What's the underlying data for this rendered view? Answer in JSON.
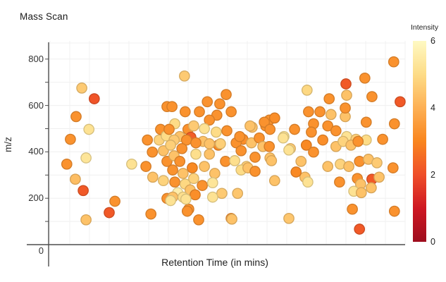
{
  "plot": {
    "title": "Mass Scan",
    "x_axis": {
      "label": "Retention Time (in mins)",
      "tick_labels_visible": false
    },
    "y_axis": {
      "label": "m/z",
      "ticks": [
        0,
        200,
        400,
        600,
        800
      ],
      "minor_tick_step": 100,
      "range": [
        0,
        880
      ]
    },
    "colorbar": {
      "label": "Intensity",
      "ticks": [
        6,
        4,
        2,
        0
      ],
      "range": [
        0,
        6
      ]
    }
  },
  "chart_data": {
    "type": "scatter",
    "title": "Mass Scan",
    "xlabel": "Retention Time (in mins)",
    "ylabel": "m/z",
    "ylim": [
      0,
      880
    ],
    "x_axis_unlabeled": true,
    "grid": true,
    "legend_position": "colorbar-right",
    "color_metric": "Intensity",
    "color_range": [
      0,
      6
    ],
    "colormap_stops": [
      "#9E0D1E",
      "#CE1722",
      "#EF4E29",
      "#F9851E",
      "#FDB054",
      "#FDDC87",
      "#FEF9C3"
    ],
    "points_format": [
      "x_percent_of_axis",
      "mz",
      "intensity"
    ],
    "points": [
      [
        9.3,
        675,
        4.6
      ],
      [
        12.8,
        629,
        2.1
      ],
      [
        7.7,
        552,
        3.3
      ],
      [
        11.3,
        497,
        5.2
      ],
      [
        6.1,
        454,
        3.3
      ],
      [
        5.1,
        347,
        3.3
      ],
      [
        10.5,
        374,
        5.3
      ],
      [
        7.5,
        282,
        4.3
      ],
      [
        9.7,
        233,
        2.2
      ],
      [
        10.5,
        107,
        4.4
      ],
      [
        17.0,
        138,
        2.2
      ],
      [
        18.6,
        187,
        3.3
      ],
      [
        23.3,
        347,
        5.2
      ],
      [
        27.3,
        337,
        3.3
      ],
      [
        28.7,
        132,
        3.3
      ],
      [
        27.7,
        451,
        3.3
      ],
      [
        31.0,
        451,
        4.8
      ],
      [
        29.1,
        399,
        3.3
      ],
      [
        32.2,
        405,
        4.4
      ],
      [
        33.2,
        359,
        3.3
      ],
      [
        29.2,
        291,
        4.4
      ],
      [
        32.2,
        276,
        4.8
      ],
      [
        33.2,
        199,
        3.3
      ],
      [
        33.2,
        595,
        3.3
      ],
      [
        31.4,
        497,
        3.3
      ],
      [
        33.0,
        469,
        5.0
      ],
      [
        38.1,
        727,
        4.6
      ],
      [
        34.6,
        595,
        3.3
      ],
      [
        38.3,
        573,
        3.3
      ],
      [
        42.3,
        573,
        3.3
      ],
      [
        49.8,
        647,
        3.3
      ],
      [
        48.0,
        607,
        3.3
      ],
      [
        44.5,
        616,
        3.3
      ],
      [
        47.2,
        558,
        3.3
      ],
      [
        51.2,
        573,
        3.3
      ],
      [
        45.1,
        537,
        3.3
      ],
      [
        35.4,
        521,
        5.0
      ],
      [
        39.1,
        497,
        3.3
      ],
      [
        33.8,
        497,
        3.3
      ],
      [
        40.7,
        512,
        4.6
      ],
      [
        43.7,
        500,
        5.2
      ],
      [
        47.0,
        485,
        5.0
      ],
      [
        50.0,
        491,
        3.3
      ],
      [
        54.5,
        454,
        3.2
      ],
      [
        57.1,
        506,
        4.4
      ],
      [
        60.9,
        512,
        3.3
      ],
      [
        61.9,
        537,
        3.3
      ],
      [
        63.4,
        546,
        3.2
      ],
      [
        66.0,
        466,
        5.2
      ],
      [
        39.9,
        463,
        2.3
      ],
      [
        36.8,
        466,
        4.4
      ],
      [
        35.2,
        451,
        4.6
      ],
      [
        38.7,
        451,
        3.3
      ],
      [
        43.3,
        445,
        4.4
      ],
      [
        47.6,
        429,
        3.1
      ],
      [
        37.4,
        414,
        3.3
      ],
      [
        41.3,
        390,
        5.1
      ],
      [
        45.1,
        390,
        4.4
      ],
      [
        49.6,
        359,
        3.3
      ],
      [
        35.2,
        383,
        4.4
      ],
      [
        36.8,
        359,
        3.3
      ],
      [
        40.3,
        331,
        3.1
      ],
      [
        43.7,
        337,
        4.4
      ],
      [
        46.6,
        307,
        4.4
      ],
      [
        34.8,
        322,
        3.3
      ],
      [
        37.7,
        307,
        4.4
      ],
      [
        40.7,
        285,
        4.8
      ],
      [
        35.4,
        270,
        3.3
      ],
      [
        38.3,
        261,
        4.9
      ],
      [
        43.1,
        255,
        3.3
      ],
      [
        46.0,
        267,
        5.3
      ],
      [
        36.2,
        224,
        5.6
      ],
      [
        39.7,
        236,
        4.4
      ],
      [
        34.8,
        205,
        4.4
      ],
      [
        37.7,
        205,
        5.1
      ],
      [
        41.1,
        215,
        3.2
      ],
      [
        48.6,
        221,
        4.6
      ],
      [
        46.0,
        205,
        5.2
      ],
      [
        39.3,
        153,
        3.3
      ],
      [
        42.1,
        107,
        3.3
      ],
      [
        38.9,
        144,
        3.3
      ],
      [
        34.2,
        190,
        5.2
      ],
      [
        38.5,
        196,
        5.2
      ],
      [
        34.2,
        429,
        4.7
      ],
      [
        41.3,
        439,
        3.3
      ],
      [
        45.1,
        435,
        4.4
      ],
      [
        48.2,
        435,
        4.7
      ],
      [
        52.6,
        439,
        3.3
      ],
      [
        54.0,
        405,
        3.3
      ],
      [
        52.2,
        362,
        5.1
      ],
      [
        55.5,
        337,
        4.7
      ],
      [
        53.0,
        221,
        4.5
      ],
      [
        51.2,
        113,
        3.3
      ],
      [
        56.5,
        512,
        4.4
      ],
      [
        60.5,
        528,
        3.3
      ],
      [
        62.1,
        497,
        3.3
      ],
      [
        53.6,
        466,
        3.3
      ],
      [
        56.9,
        439,
        4.4
      ],
      [
        59.1,
        460,
        3.3
      ],
      [
        60.1,
        423,
        4.4
      ],
      [
        65.8,
        460,
        5.2
      ],
      [
        69.0,
        497,
        3.3
      ],
      [
        57.9,
        377,
        3.3
      ],
      [
        62.1,
        374,
        4.4
      ],
      [
        67.8,
        414,
        4.6
      ],
      [
        54.0,
        322,
        5.0
      ],
      [
        55.9,
        331,
        4.4
      ],
      [
        57.9,
        316,
        3.3
      ],
      [
        63.4,
        276,
        4.4
      ],
      [
        71.9,
        291,
        4.4
      ],
      [
        61.9,
        423,
        3.3
      ],
      [
        62.5,
        362,
        4.4
      ],
      [
        67.4,
        113,
        4.5
      ],
      [
        51.4,
        110,
        4.4
      ],
      [
        72.5,
        666,
        4.9
      ],
      [
        72.9,
        573,
        3.3
      ],
      [
        76.1,
        573,
        3.3
      ],
      [
        74.3,
        521,
        3.3
      ],
      [
        78.3,
        512,
        3.3
      ],
      [
        73.7,
        485,
        3.3
      ],
      [
        80.6,
        491,
        3.3
      ],
      [
        79.2,
        561,
        4.4
      ],
      [
        83.2,
        552,
        4.4
      ],
      [
        83.2,
        589,
        3.3
      ],
      [
        78.7,
        629,
        3.3
      ],
      [
        83.6,
        644,
        4.4
      ],
      [
        83.4,
        693,
        2.2
      ],
      [
        88.7,
        718,
        3.3
      ],
      [
        90.7,
        638,
        3.3
      ],
      [
        96.8,
        788,
        3.3
      ],
      [
        98.6,
        616,
        2.2
      ],
      [
        89.1,
        528,
        3.3
      ],
      [
        97.0,
        521,
        3.3
      ],
      [
        83.6,
        466,
        5.2
      ],
      [
        86.2,
        454,
        4.7
      ],
      [
        89.1,
        451,
        5.0
      ],
      [
        93.7,
        454,
        3.3
      ],
      [
        67.4,
        408,
        5.2
      ],
      [
        72.3,
        429,
        3.1
      ],
      [
        74.3,
        399,
        3.3
      ],
      [
        76.9,
        451,
        3.2
      ],
      [
        80.6,
        423,
        4.4
      ],
      [
        82.6,
        445,
        4.8
      ],
      [
        84.8,
        429,
        4.4
      ],
      [
        86.8,
        445,
        3.3
      ],
      [
        70.8,
        359,
        4.4
      ],
      [
        69.4,
        313,
        3.1
      ],
      [
        78.3,
        337,
        4.4
      ],
      [
        81.8,
        347,
        4.8
      ],
      [
        84.2,
        337,
        4.4
      ],
      [
        87.2,
        359,
        3.3
      ],
      [
        89.7,
        368,
        4.4
      ],
      [
        92.1,
        353,
        4.6
      ],
      [
        96.6,
        331,
        3.3
      ],
      [
        72.7,
        270,
        5.2
      ],
      [
        81.6,
        270,
        3.3
      ],
      [
        86.6,
        285,
        3.3
      ],
      [
        87.5,
        261,
        4.4
      ],
      [
        90.7,
        282,
        2.2
      ],
      [
        92.7,
        291,
        4.4
      ],
      [
        85.6,
        230,
        5.2
      ],
      [
        87.7,
        224,
        4.4
      ],
      [
        90.5,
        245,
        4.4
      ],
      [
        85.2,
        153,
        3.3
      ],
      [
        97.0,
        144,
        3.3
      ],
      [
        87.2,
        67,
        2.2
      ]
    ]
  }
}
